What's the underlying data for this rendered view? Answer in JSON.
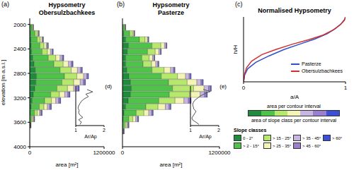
{
  "chart_data": [
    {
      "type": "bar",
      "orientation": "horizontal",
      "stacked": true,
      "annotations": [
        "(a)"
      ],
      "title": "Hypsometry",
      "subtitle": "Obersulzbachkees",
      "x_label": "area [m²]",
      "y_label": "elevation [m a.s.l.]",
      "xlim": [
        0,
        1200000
      ],
      "xticks": [
        0,
        1200000
      ],
      "ylim": [
        1900,
        4000
      ],
      "yticks": [
        2000,
        2400,
        2800,
        3200,
        3600,
        4000
      ],
      "y": [
        2050,
        2150,
        2250,
        2350,
        2450,
        2550,
        2650,
        2750,
        2850,
        2950,
        3050,
        3150,
        3250,
        3350,
        3450,
        3550,
        3650
      ],
      "series": [
        {
          "name": "0 - 2°",
          "color": "#1e8c3a",
          "values": [
            6000,
            15000,
            20000,
            25000,
            30000,
            50000,
            70000,
            90000,
            110000,
            100000,
            80000,
            60000,
            40000,
            25000,
            12000,
            4000,
            1000
          ]
        },
        {
          "name": "> 2 - 15°",
          "color": "#4fc24a",
          "values": [
            28000,
            70000,
            100000,
            140000,
            170000,
            250000,
            320000,
            400000,
            450000,
            420000,
            360000,
            280000,
            200000,
            130000,
            65000,
            22000,
            5000
          ]
        },
        {
          "name": "> 15 - 25°",
          "color": "#b6e86c",
          "values": [
            14000,
            35000,
            50000,
            65000,
            85000,
            120000,
            150000,
            180000,
            200000,
            190000,
            170000,
            140000,
            110000,
            75000,
            45000,
            18000,
            4000
          ]
        },
        {
          "name": "> 25 - 35°",
          "color": "#f4f4b6",
          "values": [
            8000,
            18000,
            28000,
            38000,
            50000,
            70000,
            85000,
            100000,
            110000,
            105000,
            100000,
            85000,
            70000,
            55000,
            35000,
            15000,
            4000
          ]
        },
        {
          "name": "> 35 - 45°",
          "color": "#c8b6e2",
          "values": [
            3000,
            8000,
            13000,
            18000,
            25000,
            35000,
            45000,
            50000,
            50000,
            50000,
            50000,
            48000,
            45000,
            35000,
            22000,
            10000,
            3000
          ]
        },
        {
          "name": "> 45 - 60°",
          "color": "#9a7ed2",
          "values": [
            1000,
            3000,
            6000,
            9000,
            13000,
            17000,
            20000,
            20000,
            20000,
            25000,
            28000,
            25000,
            25000,
            20000,
            14000,
            7000,
            2000
          ]
        },
        {
          "name": "> 60°",
          "color": "#3b4fd8",
          "values": [
            0,
            1000,
            3000,
            5000,
            7000,
            8000,
            10000,
            10000,
            10000,
            10000,
            12000,
            12000,
            10000,
            10000,
            7000,
            4000,
            1000
          ]
        }
      ]
    },
    {
      "type": "bar",
      "orientation": "horizontal",
      "stacked": true,
      "annotations": [
        "(b)"
      ],
      "title": "Hypsometry",
      "subtitle": "Pasterze",
      "x_label": "area [m²]",
      "tick_labels": "x",
      "xlim": [
        0,
        1200000
      ],
      "xticks": [
        0,
        1200000
      ],
      "ylim": [
        1900,
        4000
      ],
      "yticks": [
        2000,
        2400,
        2800,
        3200,
        3600,
        4000
      ],
      "y": [
        2050,
        2150,
        2250,
        2350,
        2450,
        2550,
        2650,
        2750,
        2850,
        2950,
        3050,
        3150,
        3250,
        3350,
        3450,
        3550,
        3650,
        3750
      ],
      "series": [
        {
          "name": "0 - 2°",
          "color": "#1e8c3a",
          "values": [
            4000,
            15000,
            40000,
            75000,
            60000,
            40000,
            40000,
            55000,
            80000,
            100000,
            110000,
            100000,
            70000,
            40000,
            20000,
            8000,
            2000,
            0
          ]
        },
        {
          "name": "> 2 - 15°",
          "color": "#4fc24a",
          "values": [
            20000,
            75000,
            170000,
            290000,
            250000,
            200000,
            215000,
            310000,
            400000,
            470000,
            510000,
            480000,
            380000,
            250000,
            150000,
            70000,
            22000,
            4000
          ]
        },
        {
          "name": "> 15 - 25°",
          "color": "#b6e86c",
          "values": [
            9000,
            35000,
            70000,
            110000,
            95000,
            90000,
            105000,
            150000,
            200000,
            230000,
            260000,
            250000,
            200000,
            150000,
            95000,
            50000,
            20000,
            4000
          ]
        },
        {
          "name": "> 25 - 35°",
          "color": "#f4f4b6",
          "values": [
            4000,
            15000,
            28000,
            45000,
            45000,
            42000,
            52000,
            80000,
            100000,
            120000,
            130000,
            130000,
            110000,
            90000,
            60000,
            35000,
            15000,
            4000
          ]
        },
        {
          "name": "> 35 - 45°",
          "color": "#c8b6e2",
          "values": [
            2000,
            6000,
            10000,
            18000,
            18000,
            17000,
            24000,
            35000,
            45000,
            50000,
            55000,
            55000,
            55000,
            45000,
            35000,
            22000,
            11000,
            4000
          ]
        },
        {
          "name": "> 45 - 60°",
          "color": "#9a7ed2",
          "values": [
            1000,
            3000,
            5000,
            8000,
            8000,
            8000,
            10000,
            14000,
            18000,
            22000,
            25000,
            25000,
            25000,
            18000,
            14000,
            10000,
            7000,
            2000
          ]
        },
        {
          "name": "> 60°",
          "color": "#3b4fd8",
          "values": [
            0,
            1000,
            2000,
            4000,
            4000,
            3000,
            4000,
            6000,
            7000,
            8000,
            10000,
            10000,
            10000,
            7000,
            6000,
            5000,
            3000,
            2000
          ]
        }
      ]
    },
    {
      "type": "line",
      "annotations": [
        "(d)"
      ],
      "x_label": "Ar/Ap",
      "tick_labels": "x",
      "color": "#555555",
      "xlim": [
        1,
        2
      ],
      "xticks": [
        1,
        2
      ],
      "ylim": [
        2000,
        3700
      ],
      "x": [
        1.15,
        1.2,
        1.1,
        1.25,
        1.15,
        1.1,
        1.12,
        1.08,
        1.1,
        1.15,
        1.2,
        1.3,
        1.45,
        1.35,
        1.6,
        1.4
      ],
      "y": [
        2050,
        2150,
        2250,
        2350,
        2450,
        2550,
        2650,
        2750,
        2850,
        2950,
        3050,
        3150,
        3250,
        3350,
        3450,
        3550
      ]
    },
    {
      "type": "line",
      "annotations": [
        "(e)"
      ],
      "x_label": "Ar/Ap",
      "tick_labels": "x",
      "color": "#555555",
      "xlim": [
        1,
        2
      ],
      "xticks": [
        1,
        2
      ],
      "ylim": [
        2000,
        3800
      ],
      "x": [
        1.3,
        1.2,
        1.08,
        1.05,
        1.1,
        1.15,
        1.2,
        1.12,
        1.1,
        1.08,
        1.1,
        1.15,
        1.25,
        1.35,
        1.5,
        1.7,
        1.45
      ],
      "y": [
        2050,
        2150,
        2250,
        2350,
        2450,
        2550,
        2650,
        2750,
        2850,
        2950,
        3050,
        3150,
        3250,
        3350,
        3450,
        3550,
        3650
      ]
    },
    {
      "type": "line",
      "annotations": [
        "(c)"
      ],
      "title": "Normalised Hypsometry",
      "x_label": "a/A",
      "y_label": "h/H",
      "tick_labels": "x",
      "legend": "lower right",
      "xlim": [
        0,
        1
      ],
      "xticks": [
        0,
        1
      ],
      "ylim": [
        0,
        1
      ],
      "yticks": [
        0,
        1
      ],
      "series": [
        {
          "name": "Pasterze",
          "color": "#3050c8",
          "x": [
            0,
            0.01,
            0.04,
            0.12,
            0.25,
            0.4,
            0.55,
            0.7,
            0.82,
            0.9,
            0.96,
            0.99,
            1
          ],
          "values": [
            0,
            0.1,
            0.2,
            0.3,
            0.4,
            0.5,
            0.58,
            0.66,
            0.74,
            0.82,
            0.9,
            0.96,
            1
          ]
        },
        {
          "name": "Obersulzbachkees",
          "color": "#d03030",
          "x": [
            0,
            0.01,
            0.03,
            0.08,
            0.18,
            0.32,
            0.48,
            0.64,
            0.78,
            0.88,
            0.95,
            0.99,
            1
          ],
          "values": [
            0,
            0.12,
            0.22,
            0.32,
            0.42,
            0.5,
            0.58,
            0.65,
            0.72,
            0.8,
            0.88,
            0.95,
            1
          ]
        }
      ]
    }
  ],
  "key": {
    "title": "Slope classes",
    "bar_top": "area per contour interval",
    "bar_bottom": "area of slope class per contour interval"
  }
}
